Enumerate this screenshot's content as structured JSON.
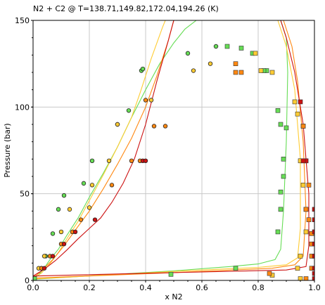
{
  "chart_data": {
    "type": "scatter",
    "title": "N2 + C2 @ T=138.71,149.82,172.04,194.26 (K)",
    "xlabel": "x N2",
    "ylabel": "Pressure (bar)",
    "xlim": [
      0,
      1
    ],
    "ylim": [
      0,
      150
    ],
    "grid": true,
    "x_ticks": [
      "0.0",
      "0.2",
      "0.4",
      "0.6",
      "0.8",
      "1.0"
    ],
    "y_ticks": [
      "0",
      "50",
      "100",
      "150"
    ],
    "colors": {
      "T1": "#66dd55",
      "T2": "#ffcc33",
      "T3": "#ff8811",
      "T4": "#cc1111"
    },
    "series": [
      {
        "color": "#66dd55",
        "liquid_curve": [
          [
            0.0,
            0.6
          ],
          [
            0.02,
            3.2
          ],
          [
            0.04,
            7.2
          ],
          [
            0.06,
            12
          ],
          [
            0.09,
            18
          ],
          [
            0.12,
            26
          ],
          [
            0.16,
            36
          ],
          [
            0.2,
            48
          ],
          [
            0.25,
            62
          ],
          [
            0.3,
            77
          ],
          [
            0.35,
            94
          ],
          [
            0.4,
            110
          ],
          [
            0.45,
            125
          ],
          [
            0.5,
            137
          ],
          [
            0.54,
            145
          ],
          [
            0.58,
            150
          ]
        ],
        "vapor_curve": [
          [
            0.0,
            0.6
          ],
          [
            0.2,
            2.6
          ],
          [
            0.5,
            5.5
          ],
          [
            0.7,
            8
          ],
          [
            0.8,
            9.5
          ],
          [
            0.86,
            12
          ],
          [
            0.88,
            18
          ],
          [
            0.89,
            40
          ],
          [
            0.9,
            80
          ],
          [
            0.905,
            120
          ],
          [
            0.9,
            140
          ],
          [
            0.88,
            150
          ]
        ],
        "liquid_points": [
          [
            0.005,
            0.8
          ],
          [
            0.03,
            7
          ],
          [
            0.045,
            14
          ],
          [
            0.07,
            27
          ],
          [
            0.09,
            41
          ],
          [
            0.11,
            49
          ],
          [
            0.18,
            56
          ],
          [
            0.21,
            69
          ],
          [
            0.3,
            90
          ],
          [
            0.34,
            98
          ],
          [
            0.385,
            121
          ],
          [
            0.39,
            122
          ],
          [
            0.55,
            131
          ],
          [
            0.65,
            135
          ]
        ],
        "vapor_points": [
          [
            0.005,
            1
          ],
          [
            0.49,
            3.5
          ],
          [
            0.72,
            7
          ],
          [
            0.87,
            28
          ],
          [
            0.88,
            41
          ],
          [
            0.88,
            51
          ],
          [
            0.89,
            60
          ],
          [
            0.89,
            70
          ],
          [
            0.9,
            88
          ],
          [
            0.88,
            90
          ],
          [
            0.87,
            98
          ],
          [
            0.83,
            121
          ],
          [
            0.82,
            121
          ],
          [
            0.74,
            134
          ],
          [
            0.78,
            131
          ],
          [
            0.69,
            135
          ]
        ]
      },
      {
        "color": "#ffcc33",
        "liquid_curve": [
          [
            0.0,
            0.8
          ],
          [
            0.03,
            4.3
          ],
          [
            0.06,
            9.6
          ],
          [
            0.09,
            16
          ],
          [
            0.12,
            24
          ],
          [
            0.16,
            34
          ],
          [
            0.2,
            46
          ],
          [
            0.25,
            61
          ],
          [
            0.3,
            77
          ],
          [
            0.35,
            94
          ],
          [
            0.38,
            108
          ],
          [
            0.42,
            128
          ],
          [
            0.46,
            146
          ],
          [
            0.47,
            150
          ]
        ],
        "vapor_curve": [
          [
            0.0,
            0.8
          ],
          [
            0.3,
            3.5
          ],
          [
            0.6,
            6
          ],
          [
            0.8,
            7.5
          ],
          [
            0.9,
            9
          ],
          [
            0.94,
            13
          ],
          [
            0.95,
            30
          ],
          [
            0.95,
            70
          ],
          [
            0.93,
            110
          ],
          [
            0.9,
            135
          ],
          [
            0.87,
            150
          ]
        ],
        "liquid_points": [
          [
            0.02,
            7
          ],
          [
            0.04,
            14
          ],
          [
            0.1,
            28
          ],
          [
            0.13,
            41
          ],
          [
            0.2,
            42
          ],
          [
            0.21,
            55
          ],
          [
            0.27,
            69
          ],
          [
            0.3,
            90
          ],
          [
            0.42,
            104
          ],
          [
            0.57,
            121
          ],
          [
            0.63,
            125
          ]
        ],
        "vapor_points": [
          [
            0.95,
            1
          ],
          [
            0.85,
            3
          ],
          [
            0.94,
            7
          ],
          [
            0.95,
            14
          ],
          [
            0.97,
            28
          ],
          [
            0.97,
            41
          ],
          [
            0.96,
            55
          ],
          [
            0.96,
            69
          ],
          [
            0.95,
            69
          ],
          [
            0.96,
            89
          ],
          [
            0.94,
            96
          ],
          [
            0.93,
            103
          ],
          [
            0.81,
            121
          ],
          [
            0.85,
            120
          ],
          [
            0.79,
            131
          ]
        ]
      },
      {
        "color": "#ff8811",
        "liquid_curve": [
          [
            0.0,
            1.3
          ],
          [
            0.03,
            5.5
          ],
          [
            0.07,
            12
          ],
          [
            0.11,
            20
          ],
          [
            0.15,
            29
          ],
          [
            0.2,
            40
          ],
          [
            0.25,
            53
          ],
          [
            0.3,
            67
          ],
          [
            0.35,
            82
          ],
          [
            0.4,
            100
          ],
          [
            0.44,
            118
          ],
          [
            0.48,
            138
          ],
          [
            0.5,
            150
          ]
        ],
        "vapor_curve": [
          [
            0.0,
            1.3
          ],
          [
            0.5,
            4.5
          ],
          [
            0.85,
            7
          ],
          [
            0.93,
            9
          ],
          [
            0.96,
            14
          ],
          [
            0.97,
            40
          ],
          [
            0.96,
            80
          ],
          [
            0.94,
            115
          ],
          [
            0.92,
            135
          ],
          [
            0.89,
            150
          ]
        ],
        "liquid_points": [
          [
            0.03,
            7
          ],
          [
            0.06,
            14
          ],
          [
            0.1,
            21
          ],
          [
            0.14,
            28
          ],
          [
            0.17,
            35
          ],
          [
            0.28,
            55
          ],
          [
            0.35,
            69
          ],
          [
            0.38,
            69
          ],
          [
            0.4,
            104
          ],
          [
            0.43,
            89
          ],
          [
            0.47,
            89
          ]
        ],
        "vapor_points": [
          [
            0.84,
            4
          ],
          [
            0.97,
            1
          ],
          [
            0.99,
            7
          ],
          [
            0.99,
            14
          ],
          [
            0.99,
            21
          ],
          [
            0.99,
            27
          ],
          [
            0.98,
            35
          ],
          [
            0.97,
            41
          ],
          [
            0.98,
            55
          ],
          [
            0.97,
            69
          ],
          [
            0.96,
            89
          ],
          [
            0.72,
            120
          ],
          [
            0.74,
            120
          ],
          [
            0.72,
            125
          ]
        ]
      },
      {
        "color": "#cc1111",
        "liquid_curve": [
          [
            0.0,
            2.5
          ],
          [
            0.04,
            6.5
          ],
          [
            0.08,
            11.5
          ],
          [
            0.12,
            17.5
          ],
          [
            0.16,
            24
          ],
          [
            0.2,
            30
          ],
          [
            0.24,
            36
          ],
          [
            0.28,
            45
          ],
          [
            0.32,
            56
          ],
          [
            0.36,
            70
          ],
          [
            0.4,
            90
          ],
          [
            0.44,
            115
          ],
          [
            0.48,
            138
          ],
          [
            0.5,
            150
          ]
        ],
        "vapor_curve": [
          [
            0.0,
            2.5
          ],
          [
            0.5,
            4.5
          ],
          [
            0.9,
            6
          ],
          [
            0.97,
            8
          ],
          [
            0.98,
            20
          ],
          [
            0.98,
            50
          ],
          [
            0.96,
            90
          ],
          [
            0.93,
            120
          ],
          [
            0.9,
            140
          ],
          [
            0.88,
            150
          ]
        ],
        "liquid_points": [
          [
            0.04,
            7
          ],
          [
            0.07,
            14
          ],
          [
            0.11,
            21
          ],
          [
            0.15,
            28
          ],
          [
            0.22,
            35
          ],
          [
            0.39,
            69
          ],
          [
            0.4,
            69
          ]
        ],
        "vapor_points": [
          [
            1.0,
            1
          ],
          [
            1.0,
            4
          ],
          [
            1.0,
            7
          ],
          [
            1.0,
            14
          ],
          [
            1.0,
            21
          ],
          [
            1.0,
            28
          ],
          [
            1.0,
            35
          ],
          [
            1.0,
            41
          ],
          [
            0.97,
            69
          ],
          [
            0.96,
            69
          ],
          [
            0.95,
            103
          ]
        ]
      }
    ]
  }
}
